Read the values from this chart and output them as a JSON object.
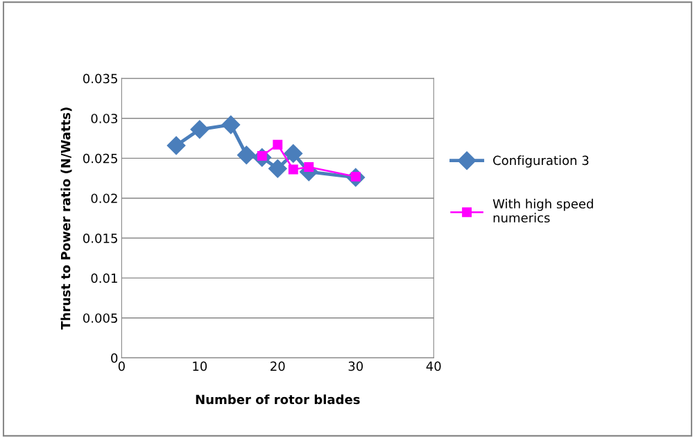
{
  "chart_data": {
    "type": "line",
    "xlabel": "Number of rotor blades",
    "ylabel": "Thrust to Power ratio (N/Watts)",
    "xlim": [
      0,
      40
    ],
    "xticks": [
      0,
      10,
      20,
      30,
      40
    ],
    "ylim": [
      0,
      0.035
    ],
    "yticks": [
      0,
      0.005,
      0.01,
      0.015,
      0.02,
      0.025,
      0.03,
      0.035
    ],
    "grid": "y",
    "legend": "right",
    "series": [
      {
        "name": "Configuration 3",
        "color": "#4a7ebb",
        "marker": "diamond",
        "x": [
          7,
          10,
          14,
          16,
          18,
          20,
          22,
          24,
          30
        ],
        "values": [
          0.0266,
          0.0286,
          0.0292,
          0.0254,
          0.0251,
          0.0237,
          0.0256,
          0.0233,
          0.0226
        ]
      },
      {
        "name": "With high speed\nnumerics",
        "color": "#ff00ff",
        "marker": "square",
        "x": [
          18,
          20,
          22,
          24,
          30
        ],
        "values": [
          0.0253,
          0.0267,
          0.0236,
          0.0239,
          0.0227
        ]
      }
    ]
  }
}
